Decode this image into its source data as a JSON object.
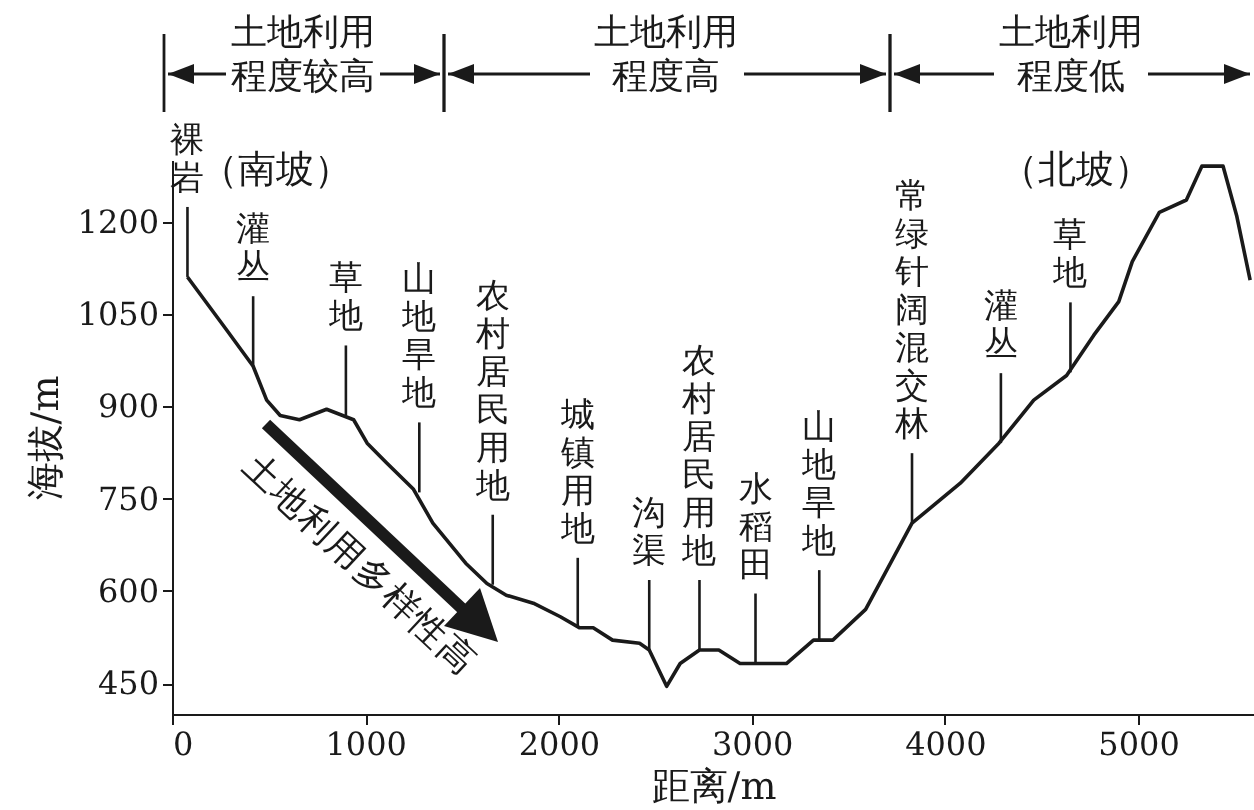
{
  "chart_data": {
    "type": "line",
    "xlabel": "距离/m",
    "ylabel": "海拔/m",
    "x": [
      80,
      280,
      420,
      490,
      560,
      660,
      800,
      940,
      1010,
      1110,
      1250,
      1350,
      1520,
      1630,
      1730,
      1870,
      2010,
      2110,
      2180,
      2280,
      2420,
      2470,
      2560,
      2630,
      2730,
      2830,
      2940,
      3180,
      3320,
      3420,
      3590,
      3830,
      4080,
      4280,
      4460,
      4630,
      4770,
      4900,
      4970,
      5110,
      5250,
      5330,
      5440,
      5510,
      5580
    ],
    "series": [
      {
        "color": "#1a1a1a",
        "values": [
          1110,
          1025,
          965,
          910,
          885,
          878,
          895,
          878,
          840,
          808,
          765,
          710,
          645,
          612,
          593,
          580,
          558,
          540,
          540,
          520,
          515,
          504,
          445,
          482,
          504,
          504,
          482,
          482,
          520,
          520,
          570,
          710,
          775,
          840,
          910,
          950,
          1015,
          1070,
          1135,
          1215,
          1235,
          1290,
          1290,
          1210,
          1105
        ]
      }
    ],
    "xlim": [
      0,
      5600
    ],
    "ylim": [
      400,
      1300
    ],
    "xticks": [
      0,
      1000,
      2000,
      3000,
      4000,
      5000
    ],
    "yticks": [
      450,
      600,
      750,
      900,
      1050,
      1200
    ],
    "annotations": [
      "土地利用程度较高",
      "土地利用程度高",
      "土地利用程度低",
      "（南坡）",
      "（北坡）",
      "土地利用多样性高",
      {
        "text": "裸岩",
        "x": 80,
        "y": 1110
      },
      {
        "text": "灌丛",
        "x": 420,
        "y": 965
      },
      {
        "text": "草地",
        "x": 900,
        "y": 885
      },
      {
        "text": "山地旱地",
        "x": 1280,
        "y": 760
      },
      {
        "text": "农村居民用地",
        "x": 1660,
        "y": 610
      },
      {
        "text": "城镇用地",
        "x": 2100,
        "y": 540
      },
      {
        "text": "沟渠",
        "x": 2470,
        "y": 504
      },
      {
        "text": "农村居民用地",
        "x": 2730,
        "y": 504
      },
      {
        "text": "水稻田",
        "x": 3020,
        "y": 482
      },
      {
        "text": "山地旱地",
        "x": 3350,
        "y": 520
      },
      {
        "text": "常绿针阔混交林",
        "x": 3830,
        "y": 710
      },
      {
        "text": "灌丛",
        "x": 4290,
        "y": 840
      },
      {
        "text": "草地",
        "x": 4650,
        "y": 955
      }
    ]
  }
}
